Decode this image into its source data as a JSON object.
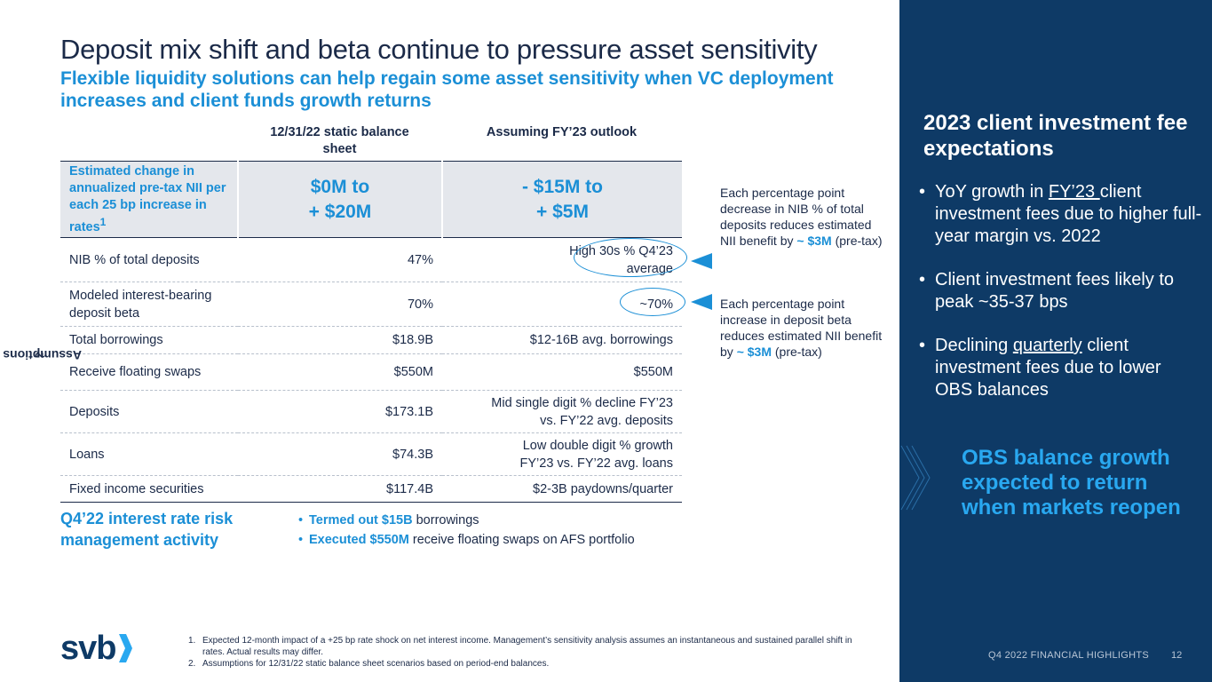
{
  "title": "Deposit mix shift and beta continue to pressure asset sensitivity",
  "subtitle": "Flexible liquidity solutions can help regain some asset sensitivity when VC deployment increases and client funds growth returns",
  "columns": {
    "col1": "12/31/22 static balance sheet",
    "col2": "Assuming FY’23 outlook"
  },
  "highlight_row": {
    "label": "Estimated change in annualized pre-tax NII per each 25 bp increase in rates",
    "label_sup": "1",
    "val1_line1": "$0M to",
    "val1_line2": "+ $20M",
    "val2_line1": "- $15M to",
    "val2_line2": "+ $5M"
  },
  "rows": [
    {
      "label": "NIB % of total deposits",
      "v1": "47%",
      "v2": "High 30s % Q4’23 average"
    },
    {
      "label": "Modeled interest-bearing deposit beta",
      "v1": "70%",
      "v2": "~70%"
    },
    {
      "label": "Total borrowings",
      "v1": "$18.9B",
      "v2": "$12-16B avg. borrowings"
    },
    {
      "label": "Receive floating swaps",
      "v1": "$550M",
      "v2": "$550M"
    },
    {
      "label": "Deposits",
      "v1": "$173.1B",
      "v2": "Mid single digit % decline FY’23 vs. FY’22 avg. deposits"
    },
    {
      "label": "Loans",
      "v1": "$74.3B",
      "v2": "Low double digit % growth FY’23 vs. FY’22 avg. loans"
    },
    {
      "label": "Fixed income securities",
      "v1": "$117.4B",
      "v2": "$2-3B paydowns/quarter"
    }
  ],
  "assumptions_label": "Assumptions",
  "assumptions_sup": "2",
  "notes": {
    "nib_text": "Each percentage point decrease in NIB % of total deposits reduces estimated NII benefit by",
    "nib_value": "~ $3M",
    "nib_suffix": "(pre-tax)",
    "beta_text": "Each percentage point increase in deposit beta reduces estimated NII benefit by",
    "beta_value": "~ $3M",
    "beta_suffix": "(pre-tax)"
  },
  "q4_activity": {
    "title": "Q4’22 interest rate risk management activity",
    "bullets": [
      {
        "bold": "Termed out $15B",
        "rest": " borrowings"
      },
      {
        "bold": "Executed $550M",
        "rest": " receive floating swaps on AFS portfolio"
      }
    ]
  },
  "logo_text": "svb",
  "footnotes": [
    {
      "num": "1.",
      "text": "Expected 12-month impact of a +25 bp rate shock on net interest income. Management’s sensitivity analysis assumes an instantaneous and sustained parallel shift in rates.  Actual results may differ."
    },
    {
      "num": "2.",
      "text": "Assumptions for 12/31/22 static balance sheet scenarios based on period-end balances."
    }
  ],
  "sidebar": {
    "title": "2023 client investment fee expectations",
    "bullet1_pre": "YoY growth in ",
    "bullet1_u": "FY’23 ",
    "bullet1_post": "client investment fees due to higher full-year margin vs. 2022",
    "bullet2": "Client investment fees likely to peak ~35-37 bps",
    "bullet3_pre": "Declining ",
    "bullet3_u": "quarterly",
    "bullet3_post": " client investment fees due to lower OBS balances",
    "callout": "OBS balance growth expected to return when markets reopen",
    "footer": "Q4 2022 FINANCIAL HIGHLIGHTS",
    "page": "12"
  },
  "colors": {
    "accent": "#1b8fd6",
    "navy": "#0e3a66",
    "text": "#1b2a48",
    "callout": "#29a8f0"
  }
}
